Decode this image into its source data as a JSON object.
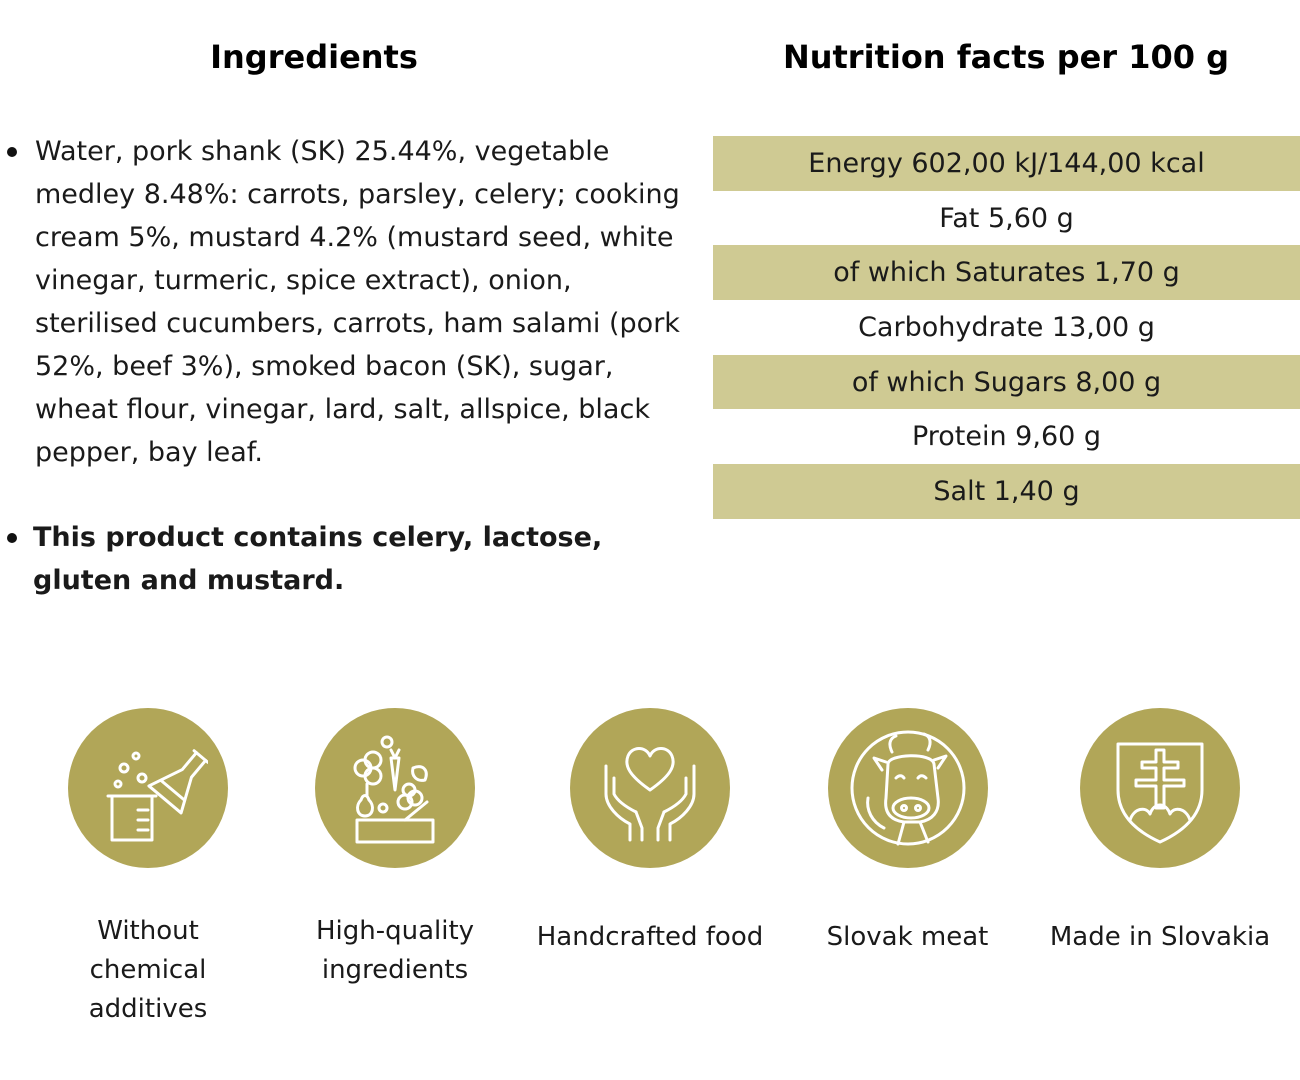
{
  "headings": {
    "ingredients": "Ingredients",
    "nutrition": "Nutrition facts per 100 g"
  },
  "ingredients": {
    "text": "Water, pork shank (SK) 25.44%, vegetable medley 8.48%: carrots, parsley, celery; cooking cream 5%, mustard 4.2% (mustard seed, white vinegar, turmeric, spice extract), onion, sterilised cucumbers, carrots, ham salami (pork 52%, beef 3%), smoked bacon (SK), sugar, wheat flour, vinegar, lard, salt, allspice, black pepper, bay leaf.",
    "allergens": "This product contains celery, lactose, gluten and mustard."
  },
  "nutrition": {
    "rows": [
      "Energy 602,00 kJ/144,00 kcal",
      "Fat 5,60 g",
      "of which Saturates 1,70 g",
      "Carbohydrate 13,00 g",
      "of which Sugars 8,00 g",
      "Protein 9,60 g",
      "Salt 1,40 g"
    ]
  },
  "features": [
    {
      "icon": "flask-beaker-icon",
      "label": "Without chemical additives"
    },
    {
      "icon": "vegetables-icon",
      "label": "High-quality ingredients"
    },
    {
      "icon": "heart-hands-icon",
      "label": "Handcrafted food"
    },
    {
      "icon": "cow-icon",
      "label": "Slovak meat"
    },
    {
      "icon": "slovak-emblem-icon",
      "label": "Made in Slovakia"
    }
  ],
  "colors": {
    "table_shade": "#cfca93",
    "icon_circle": "#b1a658",
    "icon_line": "#ffffff"
  }
}
